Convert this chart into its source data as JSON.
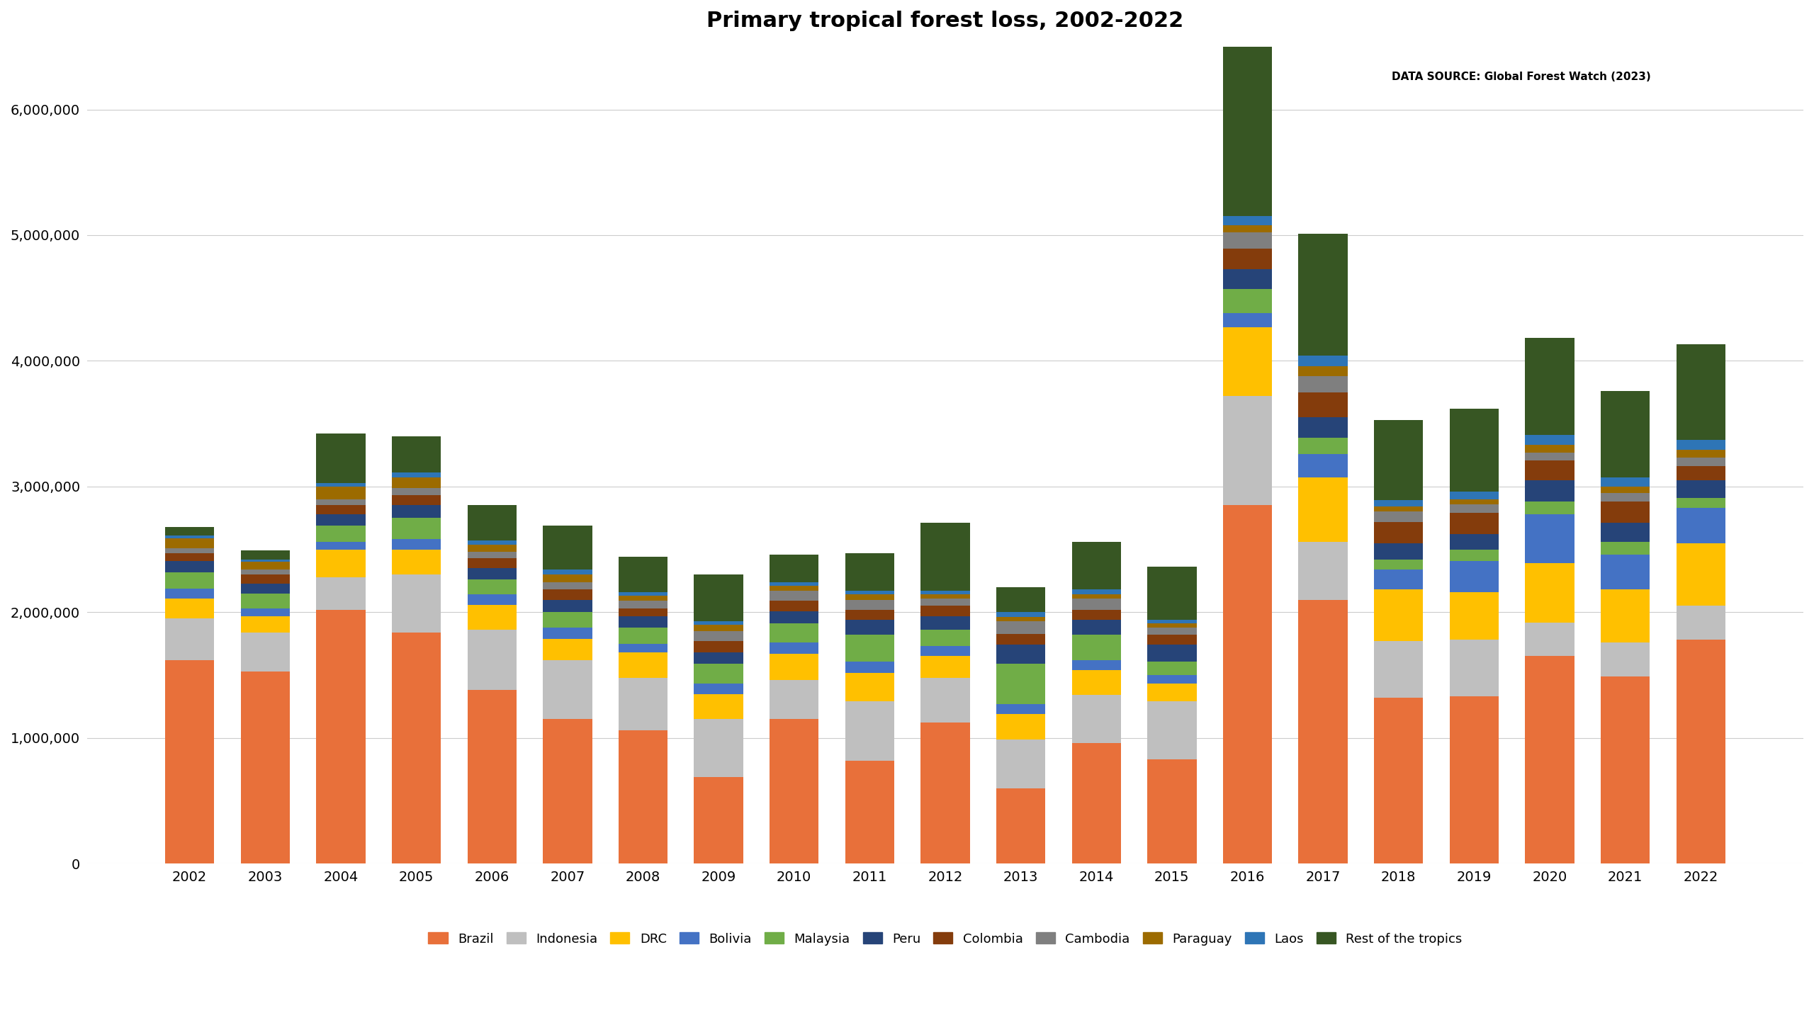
{
  "title": "Primary tropical forest loss, 2002-2022",
  "source": "DATA SOURCE: Global Forest Watch (2023)",
  "years": [
    2002,
    2003,
    2004,
    2005,
    2006,
    2007,
    2008,
    2009,
    2010,
    2011,
    2012,
    2013,
    2014,
    2015,
    2016,
    2017,
    2018,
    2019,
    2020,
    2021,
    2022
  ],
  "series": [
    {
      "name": "Brazil",
      "color": "#E8703A",
      "values": [
        1620000,
        1530000,
        2020000,
        1840000,
        1380000,
        1150000,
        1060000,
        690000,
        1150000,
        820000,
        1120000,
        600000,
        960000,
        830000,
        2850000,
        2100000,
        1320000,
        1330000,
        1650000,
        1490000,
        1780000
      ]
    },
    {
      "name": "Indonesia",
      "color": "#BFBFBF",
      "values": [
        330000,
        310000,
        260000,
        460000,
        480000,
        470000,
        420000,
        460000,
        310000,
        470000,
        360000,
        390000,
        380000,
        460000,
        870000,
        460000,
        450000,
        450000,
        270000,
        270000,
        270000
      ]
    },
    {
      "name": "DRC",
      "color": "#FFC000",
      "values": [
        160000,
        130000,
        220000,
        200000,
        200000,
        170000,
        200000,
        200000,
        210000,
        230000,
        170000,
        200000,
        200000,
        140000,
        550000,
        510000,
        410000,
        380000,
        470000,
        420000,
        500000
      ]
    },
    {
      "name": "Bolivia",
      "color": "#4472C4",
      "values": [
        80000,
        60000,
        60000,
        80000,
        80000,
        90000,
        70000,
        80000,
        90000,
        90000,
        80000,
        80000,
        80000,
        70000,
        110000,
        190000,
        160000,
        250000,
        390000,
        280000,
        280000
      ]
    },
    {
      "name": "Malaysia",
      "color": "#70AD47",
      "values": [
        130000,
        120000,
        130000,
        170000,
        120000,
        120000,
        130000,
        160000,
        150000,
        210000,
        130000,
        320000,
        200000,
        110000,
        190000,
        130000,
        80000,
        90000,
        100000,
        100000,
        80000
      ]
    },
    {
      "name": "Peru",
      "color": "#264478",
      "values": [
        90000,
        80000,
        90000,
        100000,
        90000,
        100000,
        90000,
        90000,
        100000,
        120000,
        110000,
        150000,
        120000,
        130000,
        160000,
        160000,
        130000,
        120000,
        170000,
        150000,
        140000
      ]
    },
    {
      "name": "Colombia",
      "color": "#843C0C",
      "values": [
        60000,
        70000,
        70000,
        80000,
        80000,
        80000,
        60000,
        90000,
        80000,
        80000,
        80000,
        90000,
        80000,
        80000,
        160000,
        200000,
        170000,
        170000,
        160000,
        170000,
        110000
      ]
    },
    {
      "name": "Cambodia",
      "color": "#7F7F7F",
      "values": [
        40000,
        40000,
        50000,
        60000,
        50000,
        60000,
        60000,
        80000,
        80000,
        80000,
        60000,
        100000,
        90000,
        60000,
        130000,
        130000,
        80000,
        70000,
        60000,
        70000,
        70000
      ]
    },
    {
      "name": "Paraguay",
      "color": "#9C6B00",
      "values": [
        80000,
        60000,
        100000,
        80000,
        60000,
        60000,
        40000,
        50000,
        40000,
        40000,
        30000,
        30000,
        30000,
        30000,
        60000,
        80000,
        40000,
        40000,
        60000,
        50000,
        60000
      ]
    },
    {
      "name": "Laos",
      "color": "#2E75B6",
      "values": [
        20000,
        20000,
        30000,
        40000,
        30000,
        40000,
        30000,
        30000,
        30000,
        30000,
        30000,
        40000,
        40000,
        30000,
        70000,
        80000,
        50000,
        60000,
        80000,
        70000,
        80000
      ]
    },
    {
      "name": "Rest of the tropics",
      "color": "#375623",
      "values": [
        70000,
        70000,
        390000,
        290000,
        280000,
        350000,
        280000,
        370000,
        220000,
        300000,
        540000,
        200000,
        380000,
        420000,
        1900000,
        970000,
        640000,
        660000,
        770000,
        690000,
        760000
      ]
    }
  ],
  "ylim": [
    0,
    6500000
  ],
  "yticks": [
    0,
    1000000,
    2000000,
    3000000,
    4000000,
    5000000,
    6000000
  ],
  "background_color": "#FFFFFF",
  "figsize": [
    25.6,
    14.4
  ],
  "dpi": 100
}
